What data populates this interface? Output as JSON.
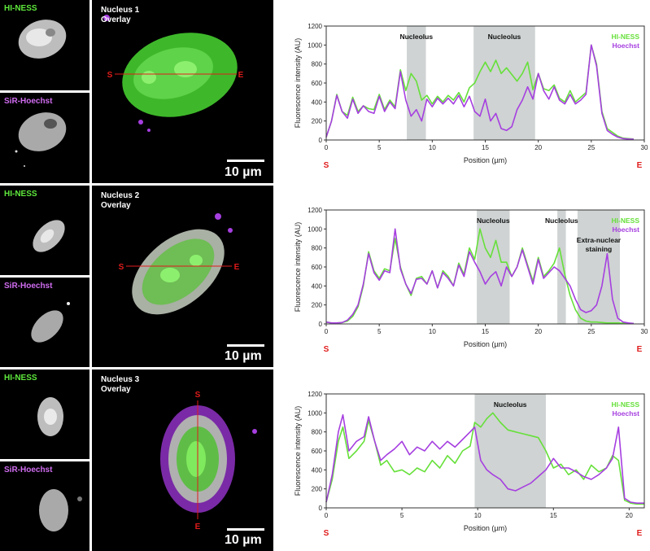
{
  "rows": [
    {
      "thumb_top_label": "HI-NESS",
      "thumb_bottom_label": "SiR-Hoechst",
      "overlay_title": "Nucleus 1",
      "overlay_subtitle": "Overlay",
      "line_start": "S",
      "line_end": "E",
      "scalebar_label": "10 µm"
    },
    {
      "thumb_top_label": "HI-NESS",
      "thumb_bottom_label": "SiR-Hoechst",
      "overlay_title": "Nucleus 2",
      "overlay_subtitle": "Overlay",
      "line_start": "S",
      "line_end": "E",
      "scalebar_label": "10 µm"
    },
    {
      "thumb_top_label": "HI-NESS",
      "thumb_bottom_label": "SiR-Hoechst",
      "overlay_title": "Nucleus 3",
      "overlay_subtitle": "Overlay",
      "line_start": "S",
      "line_end": "E",
      "scalebar_label": "10 µm"
    }
  ],
  "colors": {
    "hiness": "#66e03a",
    "hoechst": "#a63fe0",
    "shade": "#cfd3d3",
    "marker": "#e01b1b"
  },
  "chart_data": [
    {
      "type": "line",
      "xlabel": "Position (µm)",
      "ylabel": "Fluorescence intensity (AU)",
      "xlim": [
        0,
        30
      ],
      "ylim": [
        0,
        1200
      ],
      "xticks": [
        0,
        5,
        10,
        15,
        20,
        25,
        30
      ],
      "yticks": [
        0,
        200,
        400,
        600,
        800,
        1000,
        1200
      ],
      "start_label": "S",
      "end_label": "E",
      "legend": [
        "HI-NESS",
        "Hoechst"
      ],
      "legend_placement": "top-right",
      "regions": [
        {
          "x0": 7.6,
          "x1": 9.4,
          "label": "Nucleolus"
        },
        {
          "x0": 13.9,
          "x1": 19.7,
          "label": "Nucleolus"
        }
      ],
      "series": [
        {
          "name": "HI-NESS",
          "x": [
            0,
            0.5,
            1,
            1.5,
            2,
            2.5,
            3,
            3.5,
            4,
            4.5,
            5,
            5.5,
            6,
            6.5,
            7,
            7.5,
            8,
            8.5,
            9,
            9.5,
            10,
            10.5,
            11,
            11.5,
            12,
            12.5,
            13,
            13.5,
            14,
            14.5,
            15,
            15.5,
            16,
            16.5,
            17,
            17.5,
            18,
            18.5,
            19,
            19.5,
            20,
            20.5,
            21,
            21.5,
            22,
            22.5,
            23,
            23.5,
            24,
            24.5,
            25,
            25.5,
            26,
            26.5,
            27,
            27.5,
            28,
            28.5,
            29
          ],
          "y": [
            30,
            200,
            480,
            300,
            260,
            450,
            300,
            360,
            330,
            320,
            480,
            320,
            420,
            350,
            740,
            520,
            700,
            620,
            420,
            470,
            380,
            460,
            400,
            470,
            420,
            500,
            400,
            550,
            600,
            720,
            820,
            720,
            840,
            700,
            760,
            690,
            620,
            700,
            820,
            530,
            700,
            540,
            520,
            580,
            440,
            400,
            520,
            400,
            450,
            500,
            1000,
            800,
            300,
            120,
            80,
            40,
            20,
            15,
            10
          ]
        },
        {
          "name": "Hoechst",
          "x": [
            0,
            0.5,
            1,
            1.5,
            2,
            2.5,
            3,
            3.5,
            4,
            4.5,
            5,
            5.5,
            6,
            6.5,
            7,
            7.5,
            8,
            8.5,
            9,
            9.5,
            10,
            10.5,
            11,
            11.5,
            12,
            12.5,
            13,
            13.5,
            14,
            14.5,
            15,
            15.5,
            16,
            16.5,
            17,
            17.5,
            18,
            18.5,
            19,
            19.5,
            20,
            20.5,
            21,
            21.5,
            22,
            22.5,
            23,
            23.5,
            24,
            24.5,
            25,
            25.5,
            26,
            26.5,
            27,
            27.5,
            28,
            28.5,
            29
          ],
          "y": [
            30,
            200,
            470,
            300,
            230,
            430,
            280,
            360,
            300,
            280,
            460,
            300,
            400,
            330,
            720,
            420,
            250,
            320,
            200,
            430,
            350,
            440,
            380,
            440,
            380,
            470,
            350,
            460,
            300,
            250,
            430,
            200,
            280,
            120,
            100,
            140,
            320,
            420,
            560,
            430,
            700,
            520,
            430,
            560,
            420,
            380,
            480,
            380,
            420,
            480,
            1000,
            780,
            280,
            100,
            60,
            30,
            15,
            10,
            8
          ]
        }
      ]
    },
    {
      "type": "line",
      "xlabel": "Position (µm)",
      "ylabel": "Fluorescence intensity (AU)",
      "xlim": [
        0,
        30
      ],
      "ylim": [
        0,
        1200
      ],
      "xticks": [
        0,
        5,
        10,
        15,
        20,
        25,
        30
      ],
      "yticks": [
        0,
        200,
        400,
        600,
        800,
        1000,
        1200
      ],
      "start_label": "S",
      "end_label": "E",
      "legend": [
        "HI-NESS",
        "Hoechst"
      ],
      "legend_placement": "top-right",
      "regions": [
        {
          "x0": 14.2,
          "x1": 17.3,
          "label": "Nucleolus"
        },
        {
          "x0": 21.8,
          "x1": 22.6,
          "label": "Nucleolus"
        },
        {
          "x0": 23.7,
          "x1": 27.7,
          "label": "Extra-nuclear staining"
        }
      ],
      "series": [
        {
          "name": "HI-NESS",
          "x": [
            0,
            0.5,
            1,
            1.5,
            2,
            2.5,
            3,
            3.5,
            4,
            4.5,
            5,
            5.5,
            6,
            6.5,
            7,
            7.5,
            8,
            8.5,
            9,
            9.5,
            10,
            10.5,
            11,
            11.5,
            12,
            12.5,
            13,
            13.5,
            14,
            14.5,
            15,
            15.5,
            16,
            16.5,
            17,
            17.5,
            18,
            18.5,
            19,
            19.5,
            20,
            20.5,
            21,
            21.5,
            22,
            22.5,
            23,
            23.5,
            24,
            24.5,
            25,
            25.5,
            26,
            26.5,
            27,
            27.5,
            28,
            28.5,
            29
          ],
          "y": [
            20,
            10,
            10,
            15,
            30,
            80,
            180,
            400,
            760,
            560,
            480,
            580,
            560,
            900,
            600,
            420,
            300,
            480,
            500,
            420,
            560,
            380,
            560,
            500,
            400,
            640,
            520,
            800,
            680,
            1000,
            800,
            700,
            880,
            650,
            650,
            500,
            600,
            800,
            620,
            450,
            700,
            500,
            560,
            640,
            800,
            520,
            300,
            150,
            60,
            30,
            20,
            20,
            15,
            10,
            10,
            10,
            8,
            5,
            5
          ]
        },
        {
          "name": "Hoechst",
          "x": [
            0,
            0.5,
            1,
            1.5,
            2,
            2.5,
            3,
            3.5,
            4,
            4.5,
            5,
            5.5,
            6,
            6.5,
            7,
            7.5,
            8,
            8.5,
            9,
            9.5,
            10,
            10.5,
            11,
            11.5,
            12,
            12.5,
            13,
            13.5,
            14,
            14.5,
            15,
            15.5,
            16,
            16.5,
            17,
            17.5,
            18,
            18.5,
            19,
            19.5,
            20,
            20.5,
            21,
            21.5,
            22,
            22.5,
            23,
            23.5,
            24,
            24.5,
            25,
            25.5,
            26,
            26.5,
            27,
            27.5,
            28,
            28.5,
            29
          ],
          "y": [
            20,
            10,
            10,
            15,
            40,
            100,
            200,
            420,
            740,
            540,
            460,
            560,
            540,
            1000,
            580,
            420,
            320,
            470,
            480,
            420,
            560,
            380,
            540,
            480,
            400,
            620,
            500,
            760,
            650,
            550,
            420,
            500,
            550,
            400,
            600,
            500,
            600,
            780,
            600,
            420,
            680,
            480,
            540,
            600,
            560,
            480,
            400,
            260,
            150,
            120,
            140,
            200,
            400,
            740,
            260,
            60,
            20,
            10,
            5
          ]
        }
      ]
    },
    {
      "type": "line",
      "xlabel": "Position (µm)",
      "ylabel": "Fluorescence intensity (AU)",
      "xlim": [
        0,
        21
      ],
      "ylim": [
        0,
        1200
      ],
      "xticks": [
        0,
        5,
        10,
        15,
        20
      ],
      "yticks": [
        0,
        200,
        400,
        600,
        800,
        1000,
        1200
      ],
      "start_label": "S",
      "end_label": "E",
      "legend": [
        "HI-NESS",
        "Hoechst"
      ],
      "legend_placement": "top-right",
      "regions": [
        {
          "x0": 9.8,
          "x1": 14.5,
          "label": "Nucleolus"
        }
      ],
      "series": [
        {
          "name": "HI-NESS",
          "x": [
            0,
            0.4,
            0.8,
            1.1,
            1.5,
            2,
            2.5,
            2.8,
            3.2,
            3.6,
            4,
            4.5,
            5,
            5.5,
            6,
            6.5,
            7,
            7.5,
            8,
            8.5,
            9,
            9.5,
            9.8,
            10.2,
            10.6,
            11,
            11.5,
            12,
            12.5,
            13,
            13.5,
            14,
            14.5,
            15,
            15.5,
            16,
            16.5,
            17,
            17.5,
            18,
            18.5,
            18.9,
            19.3,
            19.7,
            20.1,
            20.5,
            21
          ],
          "y": [
            60,
            300,
            700,
            850,
            520,
            600,
            700,
            920,
            700,
            450,
            500,
            380,
            400,
            350,
            420,
            380,
            500,
            420,
            550,
            470,
            600,
            650,
            900,
            850,
            940,
            1000,
            900,
            820,
            800,
            780,
            760,
            740,
            600,
            420,
            460,
            350,
            400,
            300,
            450,
            380,
            420,
            550,
            500,
            80,
            50,
            40,
            40
          ]
        },
        {
          "name": "Hoechst",
          "x": [
            0,
            0.4,
            0.8,
            1.1,
            1.5,
            2,
            2.5,
            2.8,
            3.2,
            3.6,
            4,
            4.5,
            5,
            5.5,
            6,
            6.5,
            7,
            7.5,
            8,
            8.5,
            9,
            9.5,
            9.8,
            10.2,
            10.6,
            11,
            11.5,
            12,
            12.5,
            13,
            13.5,
            14,
            14.5,
            15,
            15.5,
            16,
            16.5,
            17,
            17.5,
            18,
            18.5,
            18.9,
            19.3,
            19.7,
            20.1,
            20.5,
            21
          ],
          "y": [
            60,
            350,
            800,
            980,
            600,
            700,
            750,
            960,
            700,
            500,
            560,
            620,
            700,
            560,
            640,
            600,
            700,
            620,
            700,
            640,
            720,
            800,
            850,
            500,
            400,
            350,
            300,
            200,
            180,
            220,
            260,
            330,
            400,
            520,
            420,
            420,
            380,
            330,
            300,
            350,
            420,
            520,
            850,
            100,
            60,
            50,
            50
          ]
        }
      ]
    }
  ]
}
